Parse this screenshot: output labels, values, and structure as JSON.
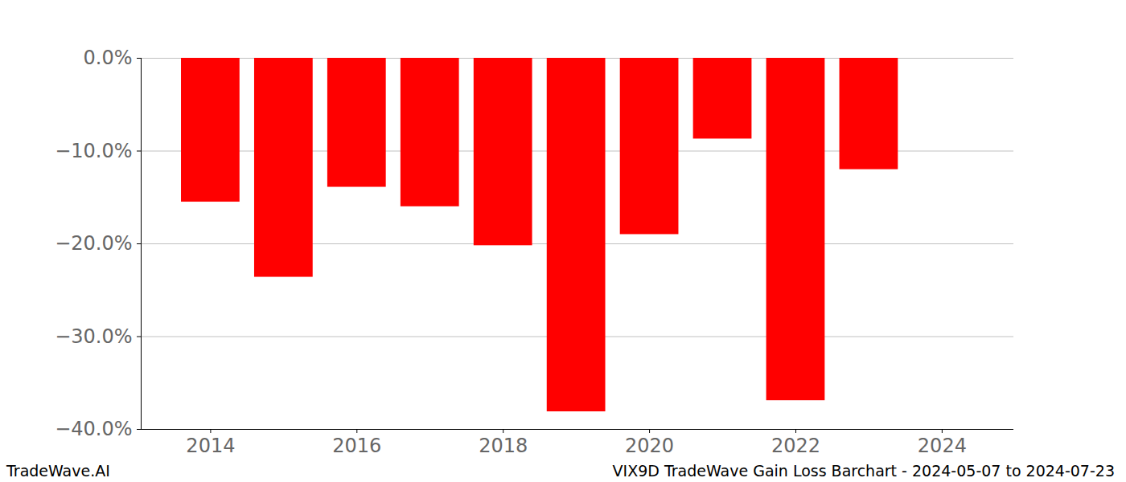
{
  "chart_data": {
    "type": "bar",
    "title": "VIX9D TradeWave Gain Loss Barchart - 2024-05-07 to 2024-07-23",
    "watermark": "TradeWave.AI",
    "x": [
      2014,
      2015,
      2016,
      2017,
      2018,
      2019,
      2020,
      2021,
      2022,
      2023
    ],
    "values": [
      -15.5,
      -23.6,
      -13.9,
      -16.0,
      -20.2,
      -38.1,
      -19.0,
      -8.7,
      -36.9,
      -12.0
    ],
    "color": "#ff0000",
    "xlim": [
      2013.05,
      2024.98
    ],
    "xticks": [
      2014,
      2016,
      2018,
      2020,
      2022,
      2024
    ],
    "ylim": [
      -40,
      0
    ],
    "yticks": [
      {
        "value": 0,
        "label": "0.0%"
      },
      {
        "value": -10,
        "label": "−10.0%"
      },
      {
        "value": -20,
        "label": "−20.0%"
      },
      {
        "value": -30,
        "label": "−30.0%"
      },
      {
        "value": -40,
        "label": "−40.0%"
      }
    ],
    "grid": true
  }
}
